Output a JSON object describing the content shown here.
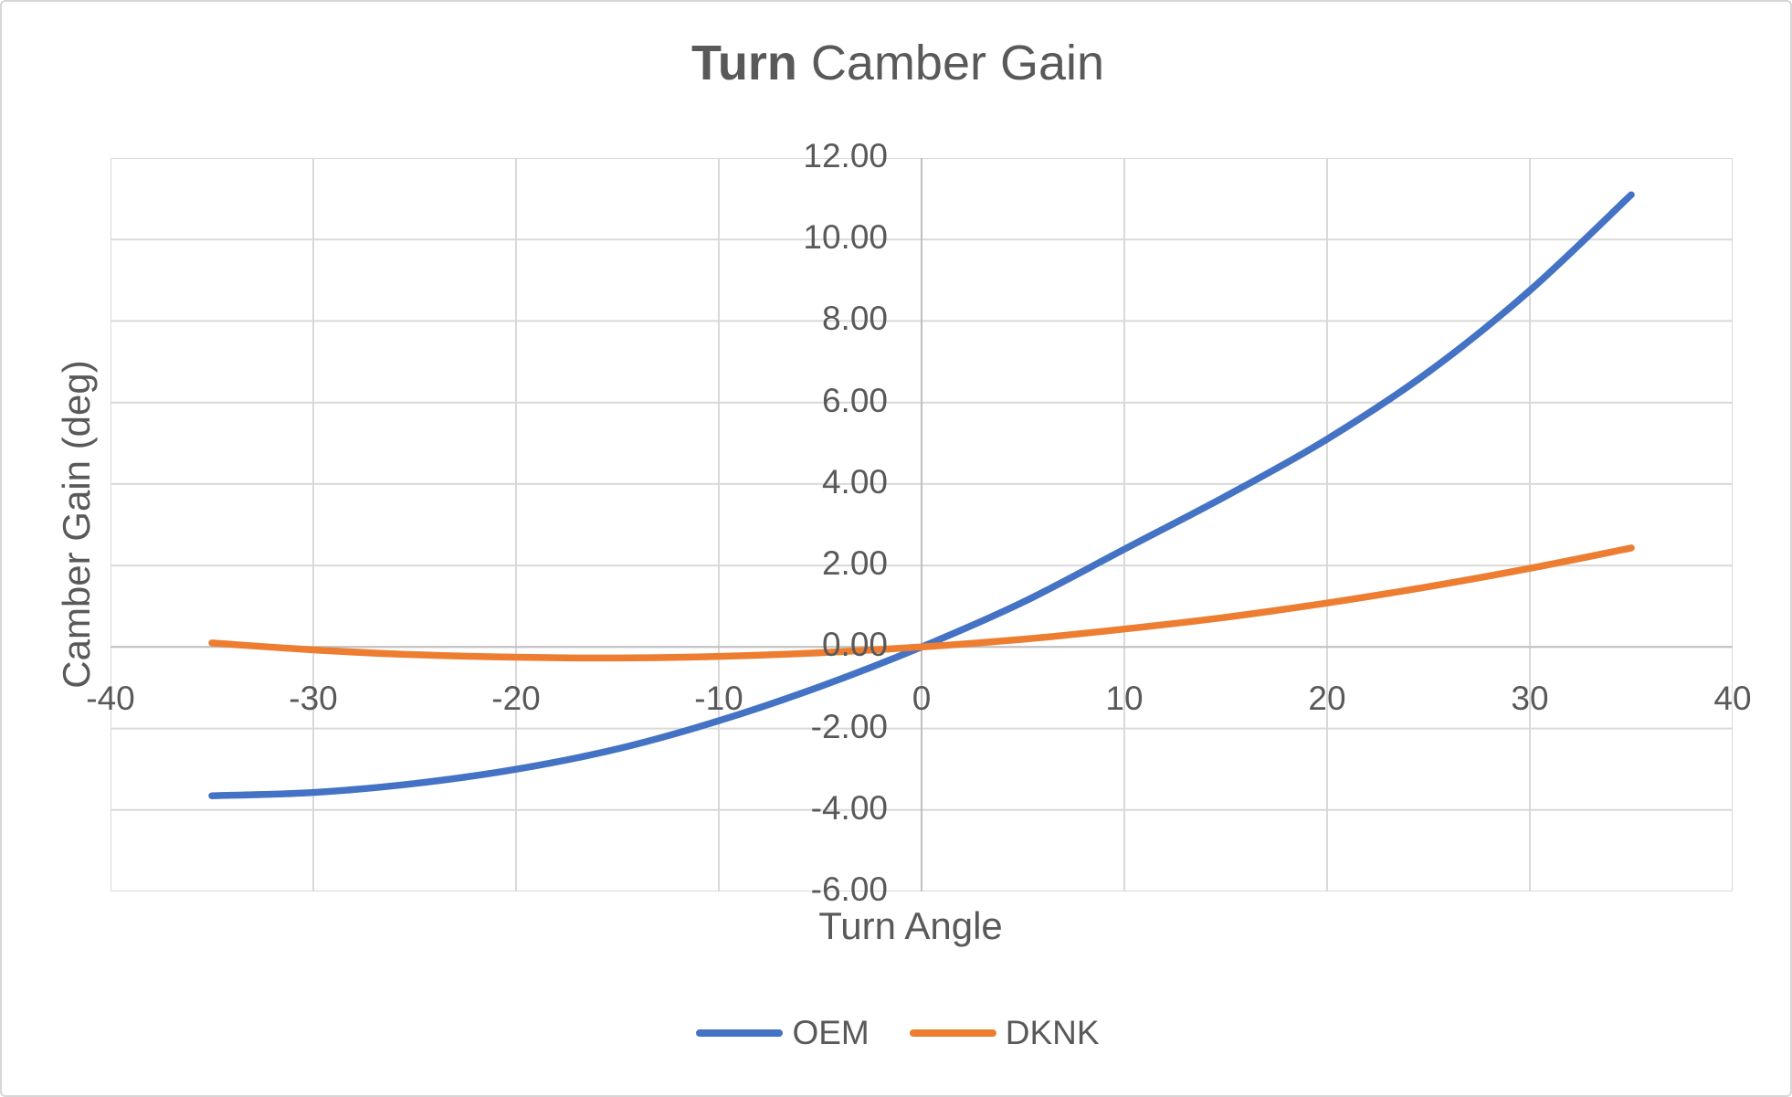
{
  "chart_data": {
    "type": "line",
    "title_bold": "Turn",
    "title_rest": " Camber Gain",
    "xlabel": "Turn Angle",
    "ylabel": "Camber Gain (deg)",
    "xlim": [
      -40,
      40
    ],
    "ylim": [
      -6,
      12
    ],
    "grid": "on",
    "legend_position": "bottom",
    "x_ticks": [
      {
        "value": -40,
        "label": "-40"
      },
      {
        "value": -30,
        "label": "-30"
      },
      {
        "value": -20,
        "label": "-20"
      },
      {
        "value": -10,
        "label": "-10"
      },
      {
        "value": 0,
        "label": "0"
      },
      {
        "value": 10,
        "label": "10"
      },
      {
        "value": 20,
        "label": "20"
      },
      {
        "value": 30,
        "label": "30"
      },
      {
        "value": 40,
        "label": "40"
      }
    ],
    "y_ticks": [
      {
        "value": 12,
        "label": "12.00"
      },
      {
        "value": 10,
        "label": "10.00"
      },
      {
        "value": 8,
        "label": "8.00"
      },
      {
        "value": 6,
        "label": "6.00"
      },
      {
        "value": 4,
        "label": "4.00"
      },
      {
        "value": 2,
        "label": "2.00"
      },
      {
        "value": 0,
        "label": "0.00"
      },
      {
        "value": -2,
        "label": "-2.00"
      },
      {
        "value": -4,
        "label": "-4.00"
      },
      {
        "value": -6,
        "label": "-6.00"
      }
    ],
    "x": [
      -35,
      -30,
      -25,
      -20,
      -15,
      -10,
      -5,
      0,
      5,
      10,
      15,
      20,
      25,
      30,
      35
    ],
    "series": [
      {
        "name": "OEM",
        "color": "#4472C4",
        "values": [
          -3.65,
          -3.57,
          -3.35,
          -3.0,
          -2.5,
          -1.81,
          -0.97,
          0.0,
          1.1,
          2.4,
          3.7,
          5.1,
          6.75,
          8.75,
          11.1
        ]
      },
      {
        "name": "DKNK",
        "color": "#ED7D31",
        "values": [
          0.1,
          -0.07,
          -0.19,
          -0.25,
          -0.27,
          -0.23,
          -0.14,
          0.0,
          0.19,
          0.44,
          0.73,
          1.08,
          1.48,
          1.93,
          2.43
        ]
      }
    ],
    "colors": {
      "gridline": "#D9D9D9",
      "axis_line": "#BFBFBF",
      "text": "#595959"
    }
  }
}
